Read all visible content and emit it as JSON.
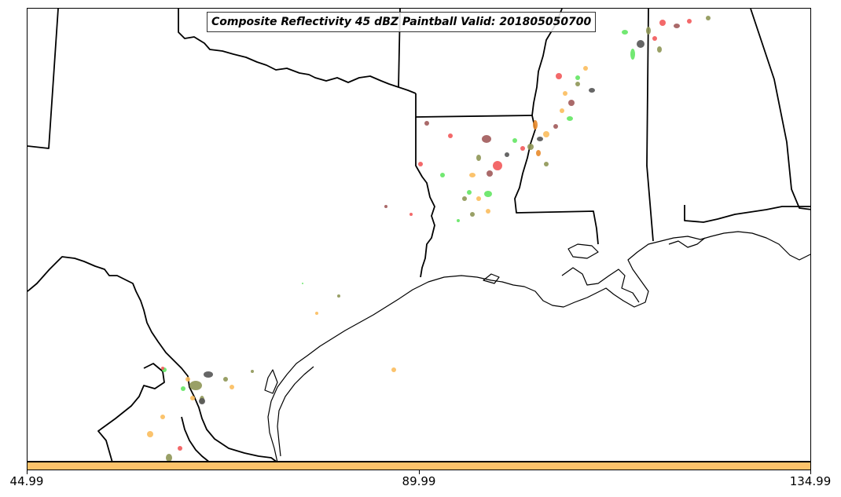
{
  "title": "Composite Reflectivity 45 dBZ Paintball Valid: 201805050700",
  "colorbar": {
    "color": "#fdc36b",
    "ticks": [
      "44.99",
      "89.99",
      "134.99"
    ]
  },
  "palette": [
    "#f2595a",
    "#63e563",
    "#555555",
    "#8e9655",
    "#fbbd5d",
    "#a15a5a",
    "#e88a2a",
    "#b7b355"
  ]
}
